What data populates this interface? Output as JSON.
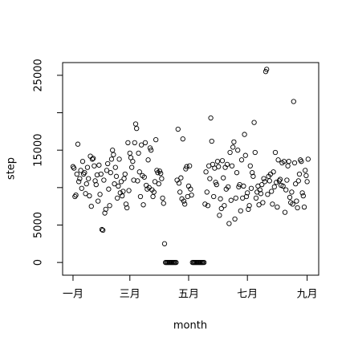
{
  "chart_data": {
    "type": "scatter",
    "x_label": "month",
    "y_label": "step",
    "x": [
      0,
      1,
      2,
      3,
      4,
      5,
      6,
      7,
      8,
      9,
      10,
      11,
      12,
      13,
      14,
      15,
      16,
      17,
      18,
      19,
      20,
      21,
      22,
      23,
      24,
      25,
      26,
      27,
      28,
      29,
      30,
      31,
      32,
      33,
      34,
      35,
      36,
      37,
      38,
      39,
      40,
      41,
      42,
      43,
      44,
      45,
      46,
      47,
      48,
      49,
      50,
      51,
      52,
      53,
      54,
      55,
      56,
      57,
      58,
      59,
      60,
      61,
      62,
      63,
      64,
      65,
      66,
      67,
      68,
      69,
      70,
      71,
      72,
      73,
      74,
      75,
      76,
      77,
      78,
      79,
      80,
      81,
      82,
      83,
      84,
      85,
      86,
      87,
      88,
      89,
      90,
      91,
      92,
      93,
      94,
      95,
      96,
      97,
      98,
      99,
      100,
      101,
      102,
      103,
      104,
      105,
      106,
      107,
      108,
      109,
      110,
      111,
      112,
      113,
      114,
      115,
      116,
      117,
      118,
      119,
      120,
      121,
      122,
      123,
      124,
      125,
      126,
      127,
      128,
      129,
      130,
      131,
      132,
      133,
      134,
      135,
      136,
      137,
      138,
      139,
      140,
      141,
      142,
      143,
      144,
      145,
      146,
      147,
      148,
      149,
      150,
      151,
      152,
      153,
      154,
      155,
      156,
      157,
      158,
      159,
      160,
      161,
      162,
      163,
      164,
      165,
      166,
      167,
      168,
      169,
      170,
      171,
      172,
      173,
      174,
      175,
      176,
      177,
      178,
      179,
      180,
      181,
      182,
      183,
      184,
      185,
      186,
      187,
      188,
      189,
      190,
      191,
      192,
      193,
      194,
      195,
      196,
      197,
      198,
      199,
      200,
      201,
      202,
      203,
      204,
      205,
      206,
      207,
      208,
      209,
      210,
      211,
      212,
      213,
      214,
      215,
      216,
      217,
      218,
      219,
      220,
      221,
      222,
      223,
      224,
      225,
      226,
      227,
      228,
      229,
      230,
      231,
      232,
      233,
      234,
      235,
      236,
      237,
      238,
      239,
      240,
      241,
      242,
      243,
      244
    ],
    "values": [
      12800,
      12600,
      8800,
      9000,
      11800,
      15800,
      10800,
      11200,
      12300,
      9900,
      13500,
      11800,
      12000,
      9200,
      10500,
      12700,
      11200,
      8900,
      14200,
      7500,
      13800,
      13900,
      12900,
      10900,
      10400,
      11700,
      8200,
      13000,
      9100,
      11800,
      4400,
      4300,
      11000,
      6600,
      7100,
      12300,
      13200,
      9800,
      7600,
      12000,
      13800,
      15000,
      14400,
      10500,
      12700,
      11500,
      8600,
      10200,
      13800,
      9300,
      10800,
      8900,
      9500,
      11200,
      11800,
      7800,
      7300,
      16000,
      9600,
      14600,
      14000,
      12700,
      13500,
      11000,
      16000,
      18500,
      17900,
      10900,
      14600,
      12100,
      8800,
      15700,
      11600,
      7700,
      11400,
      16000,
      10300,
      9800,
      13700,
      10000,
      15300,
      15000,
      9700,
      8800,
      9400,
      10800,
      16400,
      12300,
      12000,
      10500,
      12200,
      11900,
      11200,
      8600,
      7900,
      2500,
      0,
      0,
      0,
      0,
      0,
      0,
      0,
      0,
      0,
      0,
      0,
      0,
      11000,
      17800,
      10600,
      9400,
      11300,
      8500,
      16500,
      8200,
      7800,
      12500,
      12800,
      8800,
      10200,
      12900,
      9800,
      9000,
      0,
      0,
      0,
      0,
      0,
      0,
      0,
      0,
      0,
      0,
      0,
      0,
      0,
      7800,
      12100,
      9400,
      7600,
      12900,
      11200,
      19300,
      16200,
      13100,
      8800,
      12600,
      10700,
      10400,
      13500,
      12800,
      6300,
      8500,
      7200,
      13600,
      11300,
      7600,
      12700,
      9800,
      13100,
      10100,
      5200,
      14700,
      8300,
      12900,
      15400,
      16100,
      5800,
      8600,
      12000,
      15000,
      10100,
      10400,
      6900,
      13700,
      8600,
      10200,
      17100,
      14300,
      8800,
      9300,
      7100,
      7600,
      12900,
      9900,
      12000,
      11500,
      18700,
      14700,
      8600,
      9400,
      10200,
      7700,
      9700,
      9200,
      10400,
      8000,
      11200,
      10800,
      25500,
      25800,
      9100,
      11500,
      10900,
      11800,
      9500,
      7800,
      12100,
      10100,
      14700,
      10700,
      7400,
      13700,
      10900,
      11100,
      10300,
      13300,
      10200,
      13500,
      6700,
      9700,
      11000,
      12900,
      13500,
      8700,
      8000,
      9400,
      7800,
      21500,
      13300,
      10500,
      8200,
      7300,
      10900,
      11800,
      13700,
      13500,
      9300,
      8900,
      7400,
      12300,
      11600,
      10800,
      13800
    ],
    "xlim": [
      -10.8,
      255
    ],
    "ylim": [
      -1700,
      26700
    ],
    "xticks": [
      {
        "value": 0,
        "label": "一月"
      },
      {
        "value": 59,
        "label": "三月"
      },
      {
        "value": 120,
        "label": "五月"
      },
      {
        "value": 181,
        "label": "七月"
      },
      {
        "value": 243,
        "label": "九月"
      }
    ],
    "yticks": [
      0,
      5000,
      {
        "value": 10000,
        "label": null
      },
      15000,
      {
        "value": 20000,
        "label": null
      },
      25000
    ],
    "color": "#000000"
  }
}
